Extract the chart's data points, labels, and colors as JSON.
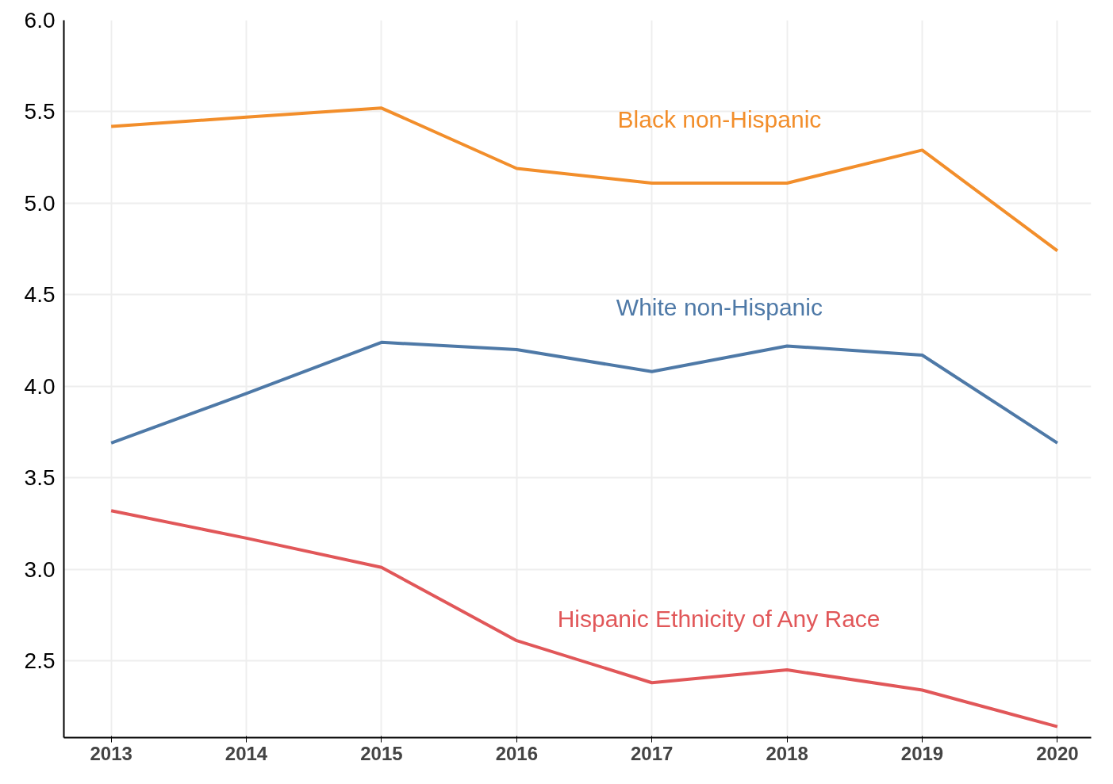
{
  "chart_data": {
    "type": "line",
    "x": [
      2013,
      2014,
      2015,
      2016,
      2017,
      2018,
      2019,
      2020
    ],
    "series": [
      {
        "name": "Black non-Hispanic",
        "color": "#f28e2b",
        "values": [
          5.42,
          5.47,
          5.52,
          5.19,
          5.11,
          5.11,
          5.29,
          4.74
        ]
      },
      {
        "name": "White non-Hispanic",
        "color": "#4e79a7",
        "values": [
          3.69,
          3.96,
          4.24,
          4.2,
          4.08,
          4.22,
          4.17,
          3.69
        ]
      },
      {
        "name": "Hispanic Ethnicity of Any Race",
        "color": "#e15759",
        "values": [
          3.32,
          3.17,
          3.01,
          2.61,
          2.38,
          2.45,
          2.34,
          2.14
        ]
      }
    ],
    "xlim": [
      2012.65,
      2020.25
    ],
    "xticks": [
      2013,
      2014,
      2015,
      2016,
      2017,
      2018,
      2019,
      2020
    ],
    "ylim": [
      2.08,
      6.0
    ],
    "yticks": [
      {
        "value": 2.5,
        "label": "2.5"
      },
      {
        "value": 3.0,
        "label": "3.0"
      },
      {
        "value": 3.5,
        "label": "3.5"
      },
      {
        "value": 4.0,
        "label": "4.0"
      },
      {
        "value": 4.5,
        "label": "4.5"
      },
      {
        "value": 5.0,
        "label": "5.0"
      },
      {
        "value": 5.5,
        "label": "5.5"
      },
      {
        "value": 6.0,
        "label": "6.0"
      }
    ],
    "grid": true,
    "marker": "none",
    "line_style": "solid"
  }
}
